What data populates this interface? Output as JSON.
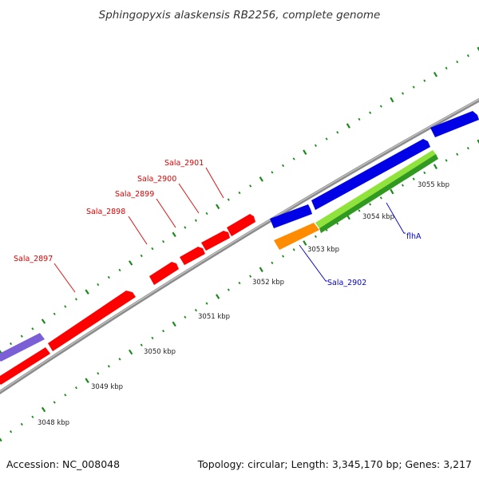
{
  "title": "Sphingopyxis alaskensis RB2256, complete genome",
  "accession": "Accession: NC_008048",
  "topology": "Topology: circular; Length: 3,345,170 bp; Genes: 3,217",
  "colors": {
    "backbone": "#8c8c8c",
    "tick": "#1a8a1a",
    "red_gene": "#ff0000",
    "blue_gene": "#0000e6",
    "purple_gene": "#7a5fd6",
    "orange_gene": "#ff8c00",
    "lightgreen_gene": "#8fe33a",
    "darkgreen_gene": "#2f9a1f",
    "label_red": "#e00000",
    "label_blue": "#0000cc"
  },
  "kbp_labels": [
    "3048 kbp",
    "3049 kbp",
    "3050 kbp",
    "3051 kbp",
    "3052 kbp",
    "3053 kbp",
    "3054 kbp",
    "3055 kbp"
  ],
  "gene_labels": [
    {
      "text": "Sala_2897",
      "color": "red"
    },
    {
      "text": "Sala_2898",
      "color": "red"
    },
    {
      "text": "Sala_2899",
      "color": "red"
    },
    {
      "text": "Sala_2900",
      "color": "red"
    },
    {
      "text": "Sala_2901",
      "color": "red"
    },
    {
      "text": "Sala_2902",
      "color": "blue"
    },
    {
      "text": "flhA",
      "color": "blue"
    }
  ]
}
